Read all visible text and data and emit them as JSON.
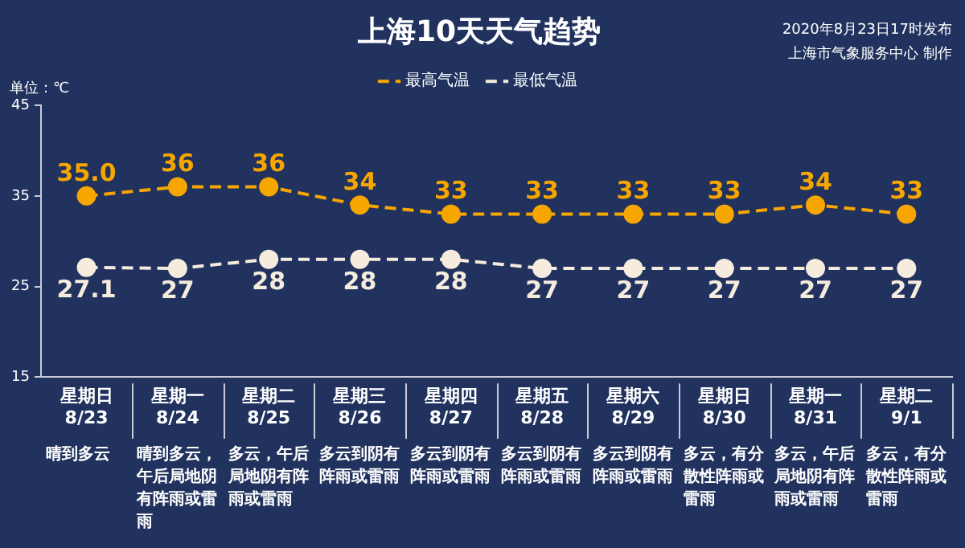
{
  "chart_data": {
    "type": "line",
    "title": "上海10天天气趋势",
    "ylabel": "单位：℃",
    "categories": [
      "星期日 8/23",
      "星期一 8/24",
      "星期二 8/25",
      "星期三 8/26",
      "星期四 8/27",
      "星期五 8/28",
      "星期六 8/29",
      "星期日 8/30",
      "星期一 8/31",
      "星期二 9/1"
    ],
    "series": [
      {
        "name": "最高气温",
        "color": "#f7a600",
        "values": [
          35,
          36,
          36,
          34,
          33,
          33,
          33,
          33,
          34,
          33
        ],
        "value_labels": [
          "35.0",
          "36",
          "36",
          "34",
          "33",
          "33",
          "33",
          "33",
          "34",
          "33"
        ]
      },
      {
        "name": "最低气温",
        "color": "#f6ecde",
        "values": [
          27.1,
          27,
          28,
          28,
          28,
          27,
          27,
          27,
          27,
          27
        ],
        "value_labels": [
          "27.1",
          "27",
          "28",
          "28",
          "28",
          "27",
          "27",
          "27",
          "27",
          "27"
        ]
      }
    ],
    "ylim": [
      15,
      45
    ],
    "yticks": [
      15,
      25,
      35,
      45
    ],
    "grid": false,
    "legend": "top",
    "marker": "circle",
    "line_style": "dashed",
    "annotations": [
      "2020年8月23日17时发布",
      "上海市气象服务中心 制作",
      "晴到多云",
      "晴到多云，午后局地阴有阵雨或雷雨",
      "多云，午后局地阴有阵雨或雷雨",
      "多云到阴有阵雨或雷雨",
      "多云到阴有阵雨或雷雨",
      "多云到阴有阵雨或雷雨",
      "多云到阴有阵雨或雷雨",
      "多云，有分散性阵雨或雷雨",
      "多云，午后局地阴有阵雨或雷雨",
      "多云，有分散性阵雨或雷雨"
    ]
  }
}
